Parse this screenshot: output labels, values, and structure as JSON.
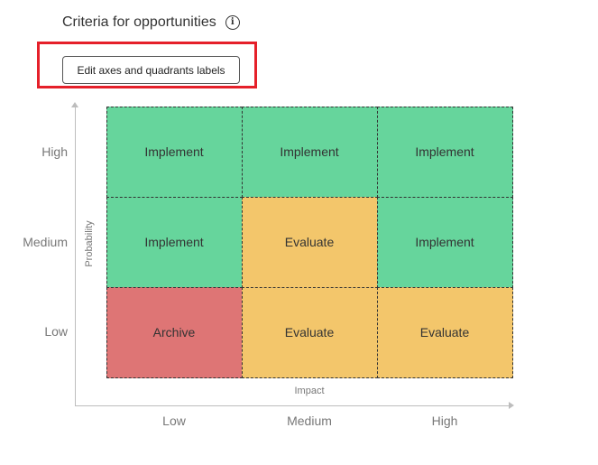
{
  "header": {
    "title": "Criteria for opportunities",
    "info_icon": "info-icon"
  },
  "toolbar": {
    "edit_label": "Edit axes and quadrants labels"
  },
  "matrix": {
    "y_axis_title": "Probability",
    "x_axis_title": "Impact",
    "y_ticks": [
      "High",
      "Medium",
      "Low"
    ],
    "x_ticks": [
      "Low",
      "Medium",
      "High"
    ],
    "colors": {
      "Implement": "#66d59c",
      "Evaluate": "#f3c66b",
      "Archive": "#de7575"
    },
    "rows": [
      [
        "Implement",
        "Implement",
        "Implement"
      ],
      [
        "Implement",
        "Evaluate",
        "Implement"
      ],
      [
        "Archive",
        "Evaluate",
        "Evaluate"
      ]
    ]
  }
}
